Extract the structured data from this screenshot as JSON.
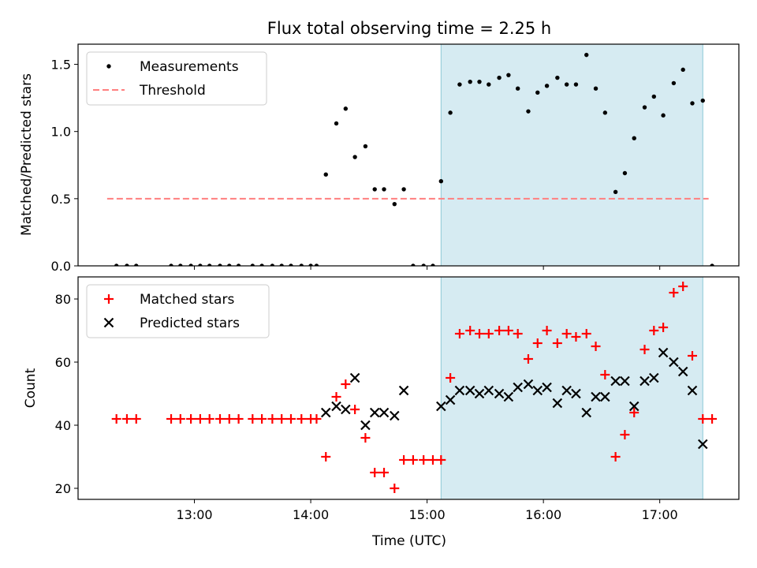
{
  "title": "Flux total observing time = 2.25 h",
  "xlabel": "Time (UTC)",
  "x_ticks": [
    "13:00",
    "14:00",
    "15:00",
    "16:00",
    "17:00"
  ],
  "x_tick_hours": [
    13,
    14,
    15,
    16,
    17
  ],
  "x_range_hours": [
    12.0,
    17.68
  ],
  "shaded_interval_hours": [
    15.12,
    17.37
  ],
  "colors": {
    "measurement": "#000000",
    "threshold": "#ff7f7f",
    "matched": "#ff0000",
    "predicted": "#000000",
    "shade": "#add8e6"
  },
  "chart_data": [
    {
      "type": "scatter",
      "ylabel": "Matched/Predicted stars",
      "ylim": [
        0,
        1.65
      ],
      "y_ticks": [
        "0.0",
        "0.5",
        "1.0",
        "1.5"
      ],
      "y_tick_values": [
        0,
        0.5,
        1.0,
        1.5
      ],
      "legend": {
        "placement": "top-left",
        "entries": [
          "Measurements",
          "Threshold"
        ]
      },
      "threshold": {
        "name": "Threshold",
        "value": 0.5,
        "x_start": 12.25,
        "x_end": 17.42
      },
      "series": [
        {
          "name": "Measurements",
          "x": [
            12.33,
            12.42,
            12.5,
            12.8,
            12.88,
            12.97,
            13.05,
            13.13,
            13.22,
            13.3,
            13.38,
            13.5,
            13.58,
            13.67,
            13.75,
            13.83,
            13.92,
            14.0,
            14.05,
            14.13,
            14.22,
            14.3,
            14.38,
            14.47,
            14.55,
            14.63,
            14.72,
            14.8,
            14.88,
            14.97,
            15.05,
            15.12,
            15.2,
            15.28,
            15.37,
            15.45,
            15.53,
            15.62,
            15.7,
            15.78,
            15.87,
            15.95,
            16.03,
            16.12,
            16.2,
            16.28,
            16.37,
            16.45,
            16.53,
            16.62,
            16.7,
            16.78,
            16.87,
            16.95,
            17.03,
            17.12,
            17.2,
            17.28,
            17.37,
            17.45
          ],
          "y": [
            0,
            0,
            0,
            0,
            0,
            0,
            0,
            0,
            0,
            0,
            0,
            0,
            0,
            0,
            0,
            0,
            0,
            0,
            0,
            0.68,
            1.06,
            1.17,
            0.81,
            0.89,
            0.57,
            0.57,
            0.46,
            0.57,
            0,
            0,
            0,
            0.63,
            1.14,
            1.35,
            1.37,
            1.37,
            1.35,
            1.4,
            1.42,
            1.32,
            1.15,
            1.29,
            1.34,
            1.4,
            1.35,
            1.35,
            1.57,
            1.32,
            1.14,
            0.55,
            0.69,
            0.95,
            1.18,
            1.26,
            1.12,
            1.36,
            1.46,
            1.21,
            1.23,
            0
          ]
        }
      ]
    },
    {
      "type": "scatter",
      "ylabel": "Count",
      "ylim": [
        16.5,
        87
      ],
      "y_ticks": [
        "20",
        "40",
        "60",
        "80"
      ],
      "y_tick_values": [
        20,
        40,
        60,
        80
      ],
      "legend": {
        "placement": "top-left",
        "entries": [
          "Matched stars",
          "Predicted stars"
        ]
      },
      "series": [
        {
          "name": "Matched stars",
          "marker": "plus",
          "x": [
            12.33,
            12.42,
            12.5,
            12.8,
            12.88,
            12.97,
            13.05,
            13.13,
            13.22,
            13.3,
            13.38,
            13.5,
            13.58,
            13.67,
            13.75,
            13.83,
            13.92,
            14.0,
            14.05,
            14.13,
            14.22,
            14.3,
            14.38,
            14.47,
            14.55,
            14.63,
            14.72,
            14.8,
            14.88,
            14.97,
            15.05,
            15.12,
            15.2,
            15.28,
            15.37,
            15.45,
            15.53,
            15.62,
            15.7,
            15.78,
            15.87,
            15.95,
            16.03,
            16.12,
            16.2,
            16.28,
            16.37,
            16.45,
            16.53,
            16.62,
            16.7,
            16.78,
            16.87,
            16.95,
            17.03,
            17.12,
            17.2,
            17.28,
            17.37,
            17.45
          ],
          "y": [
            42,
            42,
            42,
            42,
            42,
            42,
            42,
            42,
            42,
            42,
            42,
            42,
            42,
            42,
            42,
            42,
            42,
            42,
            42,
            30,
            49,
            53,
            45,
            36,
            25,
            25,
            20,
            29,
            29,
            29,
            29,
            29,
            55,
            69,
            70,
            69,
            69,
            70,
            70,
            69,
            61,
            66,
            70,
            66,
            69,
            68,
            69,
            65,
            56,
            30,
            37,
            44,
            64,
            70,
            71,
            82,
            84,
            62,
            42,
            42
          ]
        },
        {
          "name": "Predicted stars",
          "marker": "x",
          "x": [
            14.13,
            14.22,
            14.3,
            14.38,
            14.47,
            14.55,
            14.63,
            14.72,
            14.8,
            15.12,
            15.2,
            15.28,
            15.37,
            15.45,
            15.53,
            15.62,
            15.7,
            15.78,
            15.87,
            15.95,
            16.03,
            16.12,
            16.2,
            16.28,
            16.37,
            16.45,
            16.53,
            16.62,
            16.7,
            16.78,
            16.87,
            16.95,
            17.03,
            17.12,
            17.2,
            17.28,
            17.37
          ],
          "y": [
            44,
            46,
            45,
            55,
            40,
            44,
            44,
            43,
            51,
            46,
            48,
            51,
            51,
            50,
            51,
            50,
            49,
            52,
            53,
            51,
            52,
            47,
            51,
            50,
            44,
            49,
            49,
            54,
            54,
            46,
            54,
            55,
            63,
            60,
            57,
            51,
            34
          ]
        }
      ]
    }
  ]
}
